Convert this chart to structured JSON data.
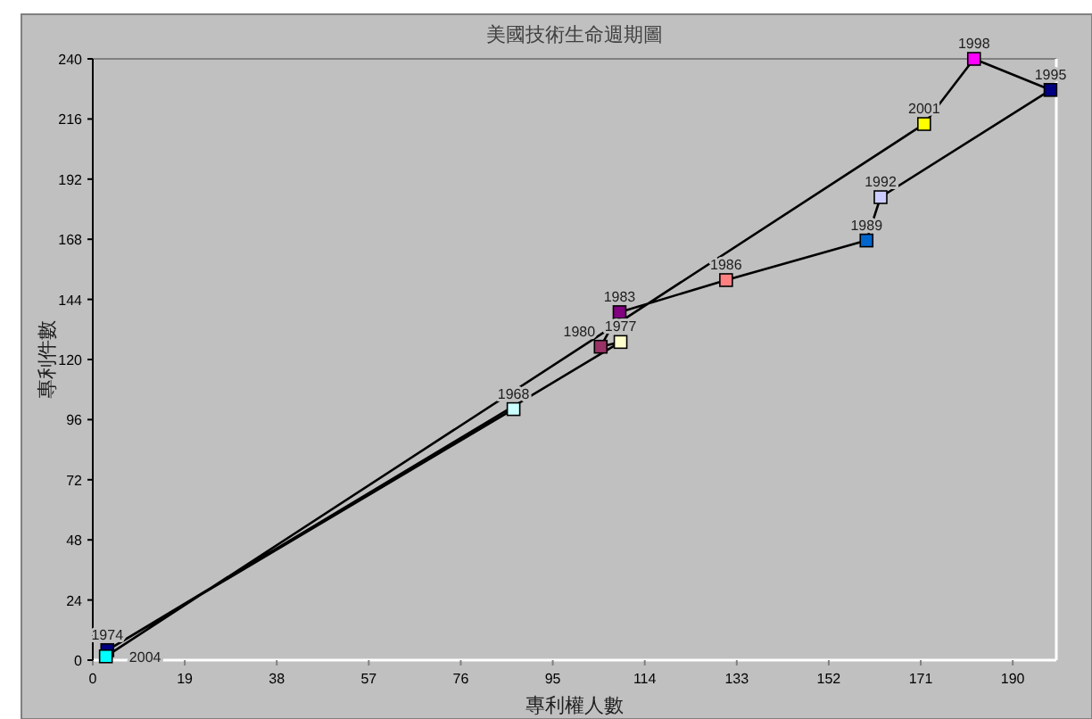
{
  "chart_data": {
    "type": "line",
    "title": "美國技術生命週期圖",
    "xlabel": "專利權人數",
    "ylabel": "專利件數",
    "x": [
      86.9,
      3,
      109,
      104.9,
      108.8,
      130.8,
      159.8,
      162.7,
      197.8,
      182,
      171.7,
      2.7
    ],
    "series": [
      {
        "values": [
          100.2,
          4,
          127,
          125.1,
          138.9,
          151.7,
          167.5,
          184.8,
          227.6,
          240,
          214,
          1.5
        ],
        "color": "#000000",
        "colors": [
          "#ccffff",
          "#000080",
          "#ffffcc",
          "#993366",
          "#800080",
          "#ff8080",
          "#0066cc",
          "#ccccff",
          "#000080",
          "#ff00ff",
          "#ffff00",
          "#00ffff"
        ]
      }
    ],
    "xlim": [
      0,
      199
    ],
    "xticks": [
      0,
      19,
      38,
      57,
      76,
      95,
      114,
      133,
      152,
      171,
      190
    ],
    "ylim": [
      0,
      240
    ],
    "yticks": [
      0,
      24,
      48,
      72,
      96,
      120,
      144,
      168,
      192,
      216,
      240
    ],
    "marker": "square",
    "grid": false,
    "annotations": [
      {
        "text": "1968",
        "x": 86.9,
        "y": 100.2
      },
      {
        "text": "1974",
        "x": 3,
        "y": 4
      },
      {
        "text": "1977",
        "x": 109,
        "y": 127
      },
      {
        "text": "1980",
        "x": 104.9,
        "y": 125.1
      },
      {
        "text": "1983",
        "x": 108.8,
        "y": 138.9
      },
      {
        "text": "1986",
        "x": 130.8,
        "y": 151.7
      },
      {
        "text": "1989",
        "x": 159.8,
        "y": 167.5
      },
      {
        "text": "1992",
        "x": 162.7,
        "y": 184.8
      },
      {
        "text": "1995",
        "x": 197.8,
        "y": 227.6
      },
      {
        "text": "1998",
        "x": 182,
        "y": 240
      },
      {
        "text": "2001",
        "x": 171.7,
        "y": 214
      },
      {
        "text": "2004",
        "x": 2.7,
        "y": 1.5
      }
    ]
  }
}
